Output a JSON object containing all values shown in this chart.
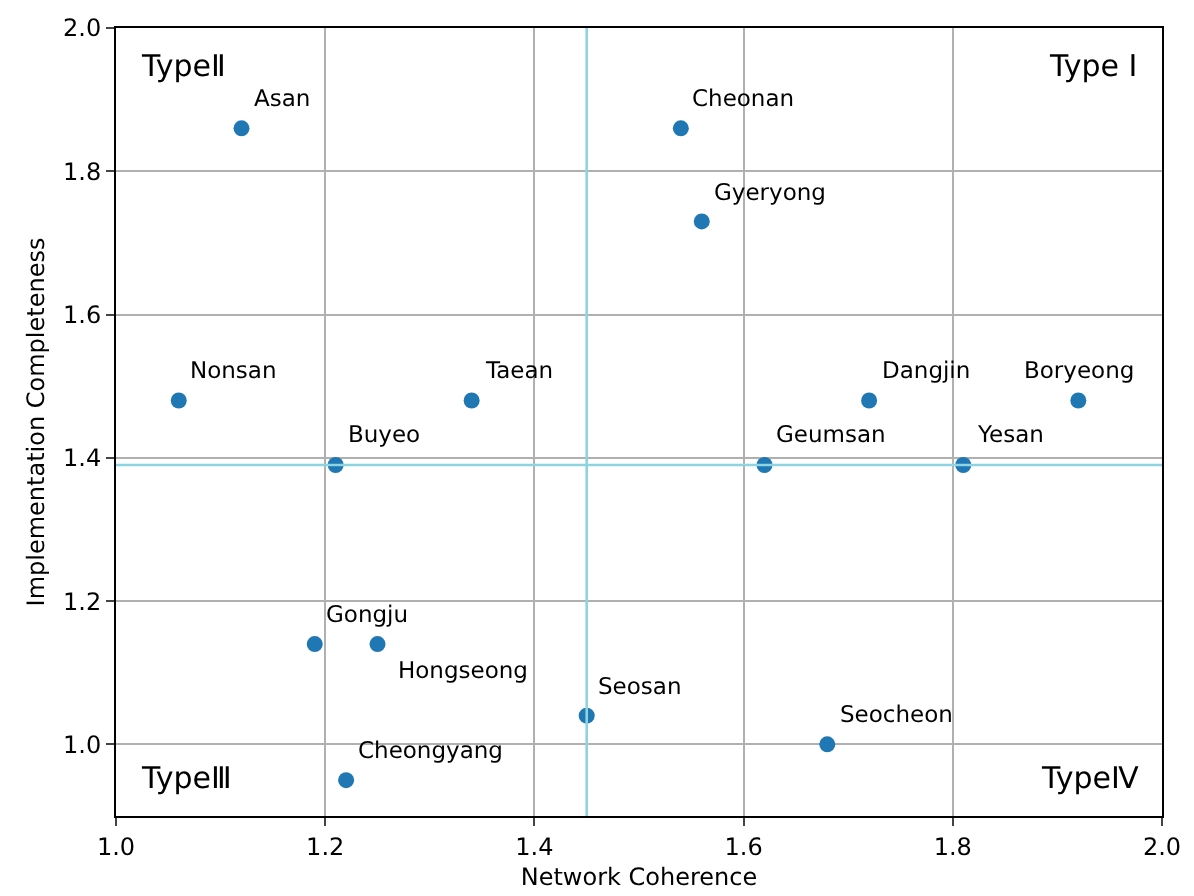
{
  "chart_data": {
    "type": "scatter",
    "xlabel": "Network Coherence",
    "ylabel": "Implementation Completeness",
    "x": [
      1.12,
      1.54,
      1.56,
      1.06,
      1.34,
      1.72,
      1.92,
      1.21,
      1.62,
      1.81,
      1.19,
      1.25,
      1.45,
      1.68,
      1.22
    ],
    "series": [
      {
        "color": "#1f77b4",
        "values": [
          1.86,
          1.86,
          1.73,
          1.48,
          1.48,
          1.48,
          1.48,
          1.39,
          1.39,
          1.39,
          1.14,
          1.14,
          1.04,
          1.0,
          0.95
        ]
      }
    ],
    "marker": "circle",
    "grid": true,
    "xlim": [
      1.0,
      2.0
    ],
    "xticks": [
      {
        "value": 1.0,
        "label": "1.0"
      },
      {
        "value": 1.2,
        "label": "1.2"
      },
      {
        "value": 1.4,
        "label": "1.4"
      },
      {
        "value": 1.6,
        "label": "1.6"
      },
      {
        "value": 1.8,
        "label": "1.8"
      },
      {
        "value": 2.0,
        "label": "2.0"
      }
    ],
    "ylim": [
      0.9,
      2.0
    ],
    "yticks": [
      {
        "value": 1.0,
        "label": "1.0"
      },
      {
        "value": 1.2,
        "label": "1.2"
      },
      {
        "value": 1.4,
        "label": "1.4"
      },
      {
        "value": 1.6,
        "label": "1.6"
      },
      {
        "value": 1.8,
        "label": "1.8"
      },
      {
        "value": 2.0,
        "label": "2.0"
      }
    ],
    "ref_lines": [
      {
        "axis": "x",
        "value": 1.45,
        "color": "#8dd3e0"
      },
      {
        "axis": "y",
        "value": 1.39,
        "color": "#8dd3e0"
      }
    ],
    "annotations": [
      "TypeⅡ",
      "Type Ⅰ",
      "TypeⅢ",
      "TypeⅣ",
      {
        "text": "Asan",
        "x": 1.12,
        "y": 1.86
      },
      {
        "text": "Cheonan",
        "x": 1.54,
        "y": 1.86
      },
      {
        "text": "Gyeryong",
        "x": 1.56,
        "y": 1.73
      },
      {
        "text": "Nonsan",
        "x": 1.06,
        "y": 1.48
      },
      {
        "text": "Taean",
        "x": 1.34,
        "y": 1.48
      },
      {
        "text": "Dangjin",
        "x": 1.72,
        "y": 1.48
      },
      {
        "text": "Boryeong",
        "x": 1.92,
        "y": 1.48
      },
      {
        "text": "Buyeo",
        "x": 1.21,
        "y": 1.39
      },
      {
        "text": "Geumsan",
        "x": 1.62,
        "y": 1.39
      },
      {
        "text": "Yesan",
        "x": 1.81,
        "y": 1.39
      },
      {
        "text": "Gongju",
        "x": 1.19,
        "y": 1.14
      },
      {
        "text": "Hongseong",
        "x": 1.25,
        "y": 1.14
      },
      {
        "text": "Seosan",
        "x": 1.45,
        "y": 1.04
      },
      {
        "text": "Seocheon",
        "x": 1.68,
        "y": 1.0
      },
      {
        "text": "Cheongyang",
        "x": 1.22,
        "y": 0.95
      }
    ]
  }
}
